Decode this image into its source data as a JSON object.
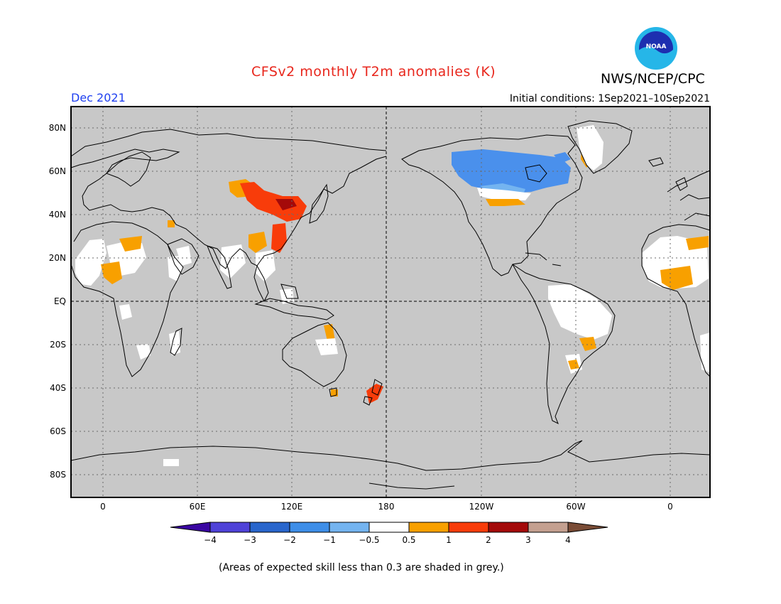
{
  "title": "CFSv2 monthly T2m anomalies (K)",
  "agency": "NWS/NCEP/CPC",
  "logo_text": "NOAA",
  "valid_month": "Dec 2021",
  "initial_conditions": "Initial conditions: 1Sep2021–10Sep2021",
  "footnote": "(Areas of expected skill less than 0.3 are shaded in grey.)",
  "map": {
    "projection": "cylindrical equidistant",
    "lat_labels": [
      "80N",
      "60N",
      "40N",
      "20N",
      "EQ",
      "20S",
      "40S",
      "60S",
      "80S"
    ],
    "lon_labels": [
      "0",
      "60E",
      "120E",
      "180",
      "120W",
      "60W",
      "0"
    ],
    "background_color": "#c8c8c8",
    "grid": "dotted",
    "dateline": "dashed",
    "equator": "dashed"
  },
  "colorbar": {
    "tick_labels": [
      "−4",
      "−3",
      "−2",
      "−1",
      "−0.5",
      "0.5",
      "1",
      "2",
      "3",
      "4"
    ],
    "colors": [
      "#3a06a2",
      "#4f42d8",
      "#2966cc",
      "#3e8ee8",
      "#74b4f0",
      "#ffffff",
      "#f8a000",
      "#f83c0a",
      "#a40a0a",
      "#c4a090",
      "#7a4c36"
    ]
  },
  "anomaly_colors": {
    "white": "#ffffff",
    "blue": "#4a90ec",
    "light_blue": "#74b4f0",
    "orange": "#f8a000",
    "red_orange": "#f83c0a",
    "dark_red": "#a40a0a"
  }
}
